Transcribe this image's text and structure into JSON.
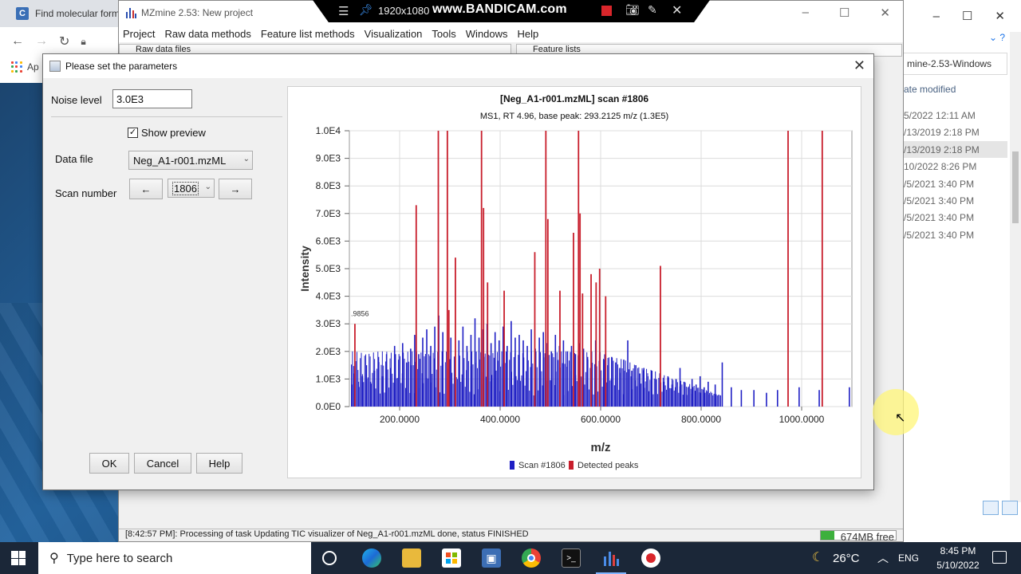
{
  "browser": {
    "tab_title": "Find molecular form",
    "favicon_letter": "C",
    "apps_label": "Ap"
  },
  "mzmine_window": {
    "title": "MZmine 2.53: New project",
    "menu": [
      "Project",
      "Raw data methods",
      "Feature list methods",
      "Visualization",
      "Tools",
      "Windows",
      "Help"
    ],
    "panels": {
      "raw_data_files": "Raw data files",
      "feature_lists": "Feature lists"
    },
    "status_text": "[8:42:57 PM]: Processing of task Updating TIC visualizer of Neg_A1-r001.mzML done, status FINISHED",
    "memory_label": "674MB free"
  },
  "bandicam": {
    "resolution": "1920x1080",
    "brand": "www.BANDICAM.com"
  },
  "explorer": {
    "path_text": "mine-2.53-Windows",
    "column_header": "ate modified",
    "rows": [
      "5/2022 12:11 AM",
      "/13/2019 2:18 PM",
      "/13/2019 2:18 PM",
      "10/2022 8:26 PM",
      "/5/2021 3:40 PM",
      "/5/2021 3:40 PM",
      "/5/2021 3:40 PM",
      "/5/2021 3:40 PM"
    ],
    "selected_row": 2
  },
  "dialog": {
    "title": "Please set the parameters",
    "noise_level_label": "Noise level",
    "noise_level_value": "3.0E3",
    "show_preview_label": "Show preview",
    "show_preview_checked": true,
    "data_file_label": "Data file",
    "data_file_value": "Neg_A1-r001.mzML",
    "scan_number_label": "Scan number",
    "scan_number_value": "1806",
    "prev_arrow": "←",
    "next_arrow": "→",
    "ok_label": "OK",
    "cancel_label": "Cancel",
    "help_label": "Help"
  },
  "chart_data": {
    "type": "bar",
    "title": "[Neg_A1-r001.mzML] scan #1806",
    "subtitle": "MS1, RT 4.96, base peak: 293.2125 m/z (1.3E5)",
    "xlabel": "m/z",
    "ylabel": "Intensity",
    "xlim": [
      100,
      1100
    ],
    "ylim": [
      0,
      10000
    ],
    "x_ticks": [
      "200.0000",
      "400.0000",
      "600.0000",
      "800.0000",
      "1000.0000"
    ],
    "y_ticks": [
      "0.0E0",
      "1.0E3",
      "2.0E3",
      "3.0E3",
      "4.0E3",
      "5.0E3",
      "6.0E3",
      "7.0E3",
      "8.0E3",
      "9.0E3",
      "1.0E4"
    ],
    "annotation": ".9856",
    "legend": [
      "Scan #1806",
      "Detected peaks"
    ],
    "colors": {
      "scan": "#1f1fc4",
      "detected": "#c81e2c"
    },
    "series": [
      {
        "name": "Detected peaks",
        "x": [
          111,
          233,
          277,
          295,
          298,
          311,
          363,
          367,
          375,
          408,
          469,
          491,
          495,
          519,
          546,
          556,
          559,
          564,
          581,
          591,
          598,
          610,
          719,
          973,
          1041
        ],
        "y": [
          3000,
          7300,
          10000,
          10000,
          3500,
          5400,
          10000,
          7200,
          4500,
          4200,
          5600,
          10000,
          6800,
          4200,
          6300,
          10000,
          7000,
          4100,
          4800,
          4500,
          5000,
          4000,
          5100,
          10000,
          10000
        ]
      },
      {
        "name": "Scan #1806",
        "x": [
          105,
          110,
          118,
          126,
          134,
          142,
          150,
          158,
          166,
          174,
          182,
          190,
          198,
          206,
          214,
          222,
          230,
          238,
          246,
          254,
          262,
          270,
          278,
          286,
          302,
          318,
          326,
          334,
          342,
          350,
          358,
          366,
          374,
          382,
          390,
          398,
          406,
          414,
          422,
          430,
          438,
          446,
          454,
          462,
          470,
          478,
          486,
          494,
          502,
          510,
          518,
          526,
          534,
          542,
          550,
          558,
          566,
          574,
          582,
          590,
          598,
          606,
          614,
          622,
          630,
          638,
          646,
          654,
          662,
          670,
          678,
          686,
          694,
          702,
          710,
          718,
          726,
          734,
          742,
          750,
          758,
          766,
          774,
          782,
          790,
          798,
          806,
          814,
          828,
          842,
          860,
          880,
          905,
          930,
          952,
          995,
          1035,
          1095
        ],
        "y": [
          800,
          1200,
          900,
          1100,
          1500,
          900,
          1300,
          1800,
          1100,
          1900,
          1400,
          2200,
          1700,
          2300,
          1600,
          2100,
          2600,
          1900,
          2500,
          2800,
          2200,
          2900,
          3300,
          2700,
          2500,
          2400,
          2900,
          2200,
          2600,
          3200,
          2500,
          2800,
          3000,
          2300,
          2700,
          2400,
          2900,
          2200,
          3100,
          2500,
          2600,
          2400,
          2200,
          2800,
          2100,
          2500,
          2700,
          2300,
          2000,
          2600,
          2200,
          2400,
          2000,
          2200,
          1900,
          2300,
          2100,
          1800,
          2000,
          2400,
          1900,
          1700,
          1500,
          1800,
          1600,
          1400,
          1700,
          2400,
          1300,
          1500,
          1200,
          1400,
          1100,
          1300,
          1000,
          1200,
          900,
          1100,
          800,
          1000,
          1400,
          900,
          700,
          1000,
          800,
          1100,
          700,
          900,
          800,
          1600,
          700,
          600,
          600,
          500,
          600,
          700,
          600,
          700
        ]
      }
    ]
  },
  "taskbar": {
    "search_placeholder": "Type here to search",
    "temperature": "26°C",
    "language": "ENG",
    "time": "8:45 PM",
    "date": "5/10/2022"
  }
}
